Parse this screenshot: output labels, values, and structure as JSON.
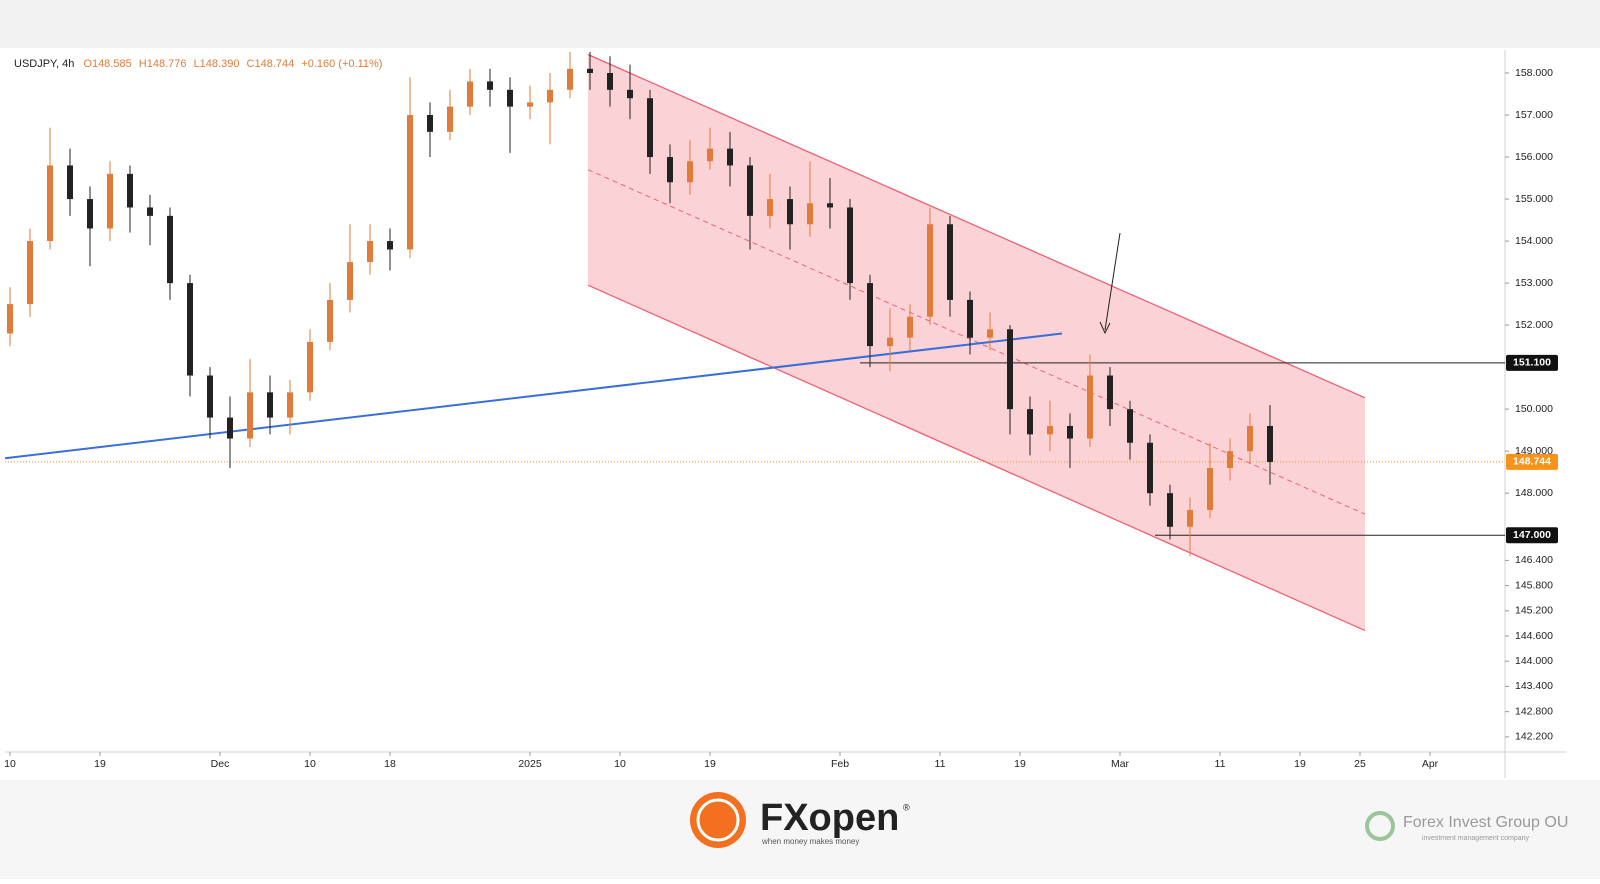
{
  "chart_data": {
    "type": "candlestick",
    "header": {
      "symbol": "USDJPY, 4h",
      "open": "O148.585",
      "high": "H148.776",
      "low": "L148.390",
      "close": "C148.744",
      "change": "+0.160 (+0.11%)"
    },
    "x": [
      0,
      2,
      4,
      6,
      8,
      10,
      12,
      14,
      16,
      18,
      20,
      22,
      24,
      26,
      28,
      30,
      32,
      34,
      36,
      38,
      40,
      42,
      44,
      46,
      48,
      50,
      52,
      54,
      56,
      58,
      60,
      62,
      64,
      66,
      68,
      70,
      72,
      74,
      76,
      78,
      80,
      82,
      84,
      86,
      88,
      90,
      92,
      94,
      96,
      98,
      100,
      102,
      104,
      106,
      108,
      110,
      112,
      114,
      116,
      118,
      120,
      122,
      124,
      126
    ],
    "open": [
      151.8,
      152.5,
      154.0,
      155.8,
      155.0,
      154.3,
      155.6,
      154.8,
      154.6,
      153.0,
      150.8,
      149.8,
      149.3,
      150.4,
      149.8,
      150.4,
      151.6,
      152.6,
      153.5,
      154.0,
      153.8,
      157.0,
      156.6,
      157.2,
      157.8,
      157.6,
      157.2,
      157.3,
      157.6,
      158.1,
      158.0,
      157.6,
      157.4,
      156.0,
      155.4,
      155.9,
      156.2,
      155.8,
      154.6,
      155.0,
      154.4,
      154.9,
      154.8,
      153.0,
      151.5,
      151.7,
      152.2,
      154.4,
      152.6,
      151.7,
      151.9,
      150.0,
      149.4,
      149.6,
      149.3,
      150.8,
      150.0,
      149.2,
      148.0,
      147.2,
      147.6,
      148.6,
      149.0,
      149.6
    ],
    "high": [
      152.9,
      154.3,
      156.7,
      156.2,
      155.3,
      155.9,
      155.8,
      155.1,
      154.8,
      153.2,
      151.0,
      150.3,
      151.2,
      150.8,
      150.7,
      151.9,
      153.0,
      154.4,
      154.4,
      154.3,
      157.9,
      157.3,
      157.6,
      158.1,
      158.1,
      157.9,
      157.7,
      158.0,
      158.5,
      158.5,
      158.4,
      158.2,
      157.6,
      156.3,
      156.4,
      156.7,
      156.6,
      156.0,
      155.6,
      155.3,
      155.9,
      155.5,
      155.0,
      153.2,
      152.4,
      152.5,
      154.8,
      154.6,
      152.8,
      152.3,
      152.0,
      150.3,
      150.2,
      149.9,
      151.3,
      151.0,
      150.2,
      149.4,
      148.2,
      147.9,
      149.2,
      149.3,
      149.9,
      150.1
    ],
    "low": [
      151.5,
      152.2,
      153.8,
      154.6,
      153.4,
      154.0,
      154.2,
      153.9,
      152.6,
      150.3,
      149.3,
      148.6,
      149.1,
      149.4,
      149.4,
      150.2,
      151.4,
      152.3,
      153.2,
      153.3,
      153.6,
      156.0,
      156.4,
      157.0,
      157.2,
      156.1,
      156.9,
      156.3,
      157.4,
      157.6,
      157.2,
      156.9,
      155.6,
      154.9,
      155.1,
      155.7,
      155.3,
      153.8,
      154.3,
      153.8,
      154.1,
      154.3,
      152.6,
      151.0,
      150.9,
      151.4,
      152.0,
      152.2,
      151.3,
      151.4,
      149.4,
      148.9,
      149.0,
      148.6,
      149.1,
      149.6,
      148.8,
      147.7,
      146.9,
      146.5,
      147.4,
      148.3,
      148.7,
      148.2
    ],
    "close": [
      152.5,
      154.0,
      155.8,
      155.0,
      154.3,
      155.6,
      154.8,
      154.6,
      153.0,
      150.8,
      149.8,
      149.3,
      150.4,
      149.8,
      150.4,
      151.6,
      152.6,
      153.5,
      154.0,
      153.8,
      157.0,
      156.6,
      157.2,
      157.8,
      157.6,
      157.2,
      157.3,
      157.6,
      158.1,
      158.0,
      157.6,
      157.4,
      156.0,
      155.4,
      155.9,
      156.2,
      155.8,
      154.6,
      155.0,
      154.4,
      154.9,
      154.8,
      153.0,
      151.5,
      151.7,
      152.2,
      154.4,
      152.6,
      151.7,
      151.9,
      150.0,
      149.4,
      149.6,
      149.3,
      150.8,
      150.0,
      149.2,
      148.0,
      147.2,
      147.6,
      148.6,
      149.0,
      149.6,
      148.744
    ],
    "up_color": "#e07b39",
    "down_color": "#222222",
    "xlim": [
      -0.5,
      149.5
    ],
    "ylim": [
      141.84,
      158.5
    ],
    "grid": false,
    "xticks": [
      {
        "value": 0,
        "label": "10"
      },
      {
        "value": 9,
        "label": "19"
      },
      {
        "value": 21,
        "label": "Dec"
      },
      {
        "value": 30,
        "label": "10"
      },
      {
        "value": 38,
        "label": "18"
      },
      {
        "value": 52,
        "label": "2025"
      },
      {
        "value": 61,
        "label": "10"
      },
      {
        "value": 70,
        "label": "19"
      },
      {
        "value": 83,
        "label": "Feb"
      },
      {
        "value": 93,
        "label": "11"
      },
      {
        "value": 101,
        "label": "19"
      },
      {
        "value": 111,
        "label": "Mar"
      },
      {
        "value": 121,
        "label": "11"
      },
      {
        "value": 129,
        "label": "19"
      },
      {
        "value": 135,
        "label": "25"
      },
      {
        "value": 142,
        "label": "Apr"
      }
    ],
    "yticks": [
      {
        "value": 158,
        "label": "158.000"
      },
      {
        "value": 157,
        "label": "157.000"
      },
      {
        "value": 156,
        "label": "156.000"
      },
      {
        "value": 155,
        "label": "155.000"
      },
      {
        "value": 154,
        "label": "154.000"
      },
      {
        "value": 153,
        "label": "153.000"
      },
      {
        "value": 152,
        "label": "152.000"
      },
      {
        "value": 150,
        "label": "150.000"
      },
      {
        "value": 149,
        "label": "149.000"
      },
      {
        "value": 148,
        "label": "148.000"
      },
      {
        "value": 146.4,
        "label": "146.400"
      },
      {
        "value": 145.8,
        "label": "145.800"
      },
      {
        "value": 145.2,
        "label": "145.200"
      },
      {
        "value": 144.6,
        "label": "144.600"
      },
      {
        "value": 144,
        "label": "144.000"
      },
      {
        "value": 143.4,
        "label": "143.400"
      },
      {
        "value": 142.8,
        "label": "142.800"
      },
      {
        "value": 142.2,
        "label": "142.200"
      }
    ],
    "levels": [
      {
        "value": 151.1,
        "label": "151.100",
        "start": 85
      },
      {
        "value": 147,
        "label": "147.000",
        "start": 114.5
      }
    ],
    "last_price": {
      "value": 148.744,
      "label": "148.744",
      "color": "#f7931a"
    },
    "channel": {
      "x": [
        57.8,
        135.5
      ],
      "upper": [
        158.44,
        150.27
      ],
      "middle": [
        155.7,
        147.5
      ],
      "lower": [
        152.95,
        144.73
      ],
      "color": "#f06070"
    },
    "trendline": {
      "x": [
        -0.5,
        105.2
      ],
      "y": [
        148.83,
        151.8
      ],
      "color": "#3a6fd8"
    }
  },
  "branding": {
    "logo": "FXopen",
    "logo_mark": "®",
    "tagline": "when money makes money",
    "company": "Forex Invest Group OU",
    "company_tagline": "investment management company"
  }
}
